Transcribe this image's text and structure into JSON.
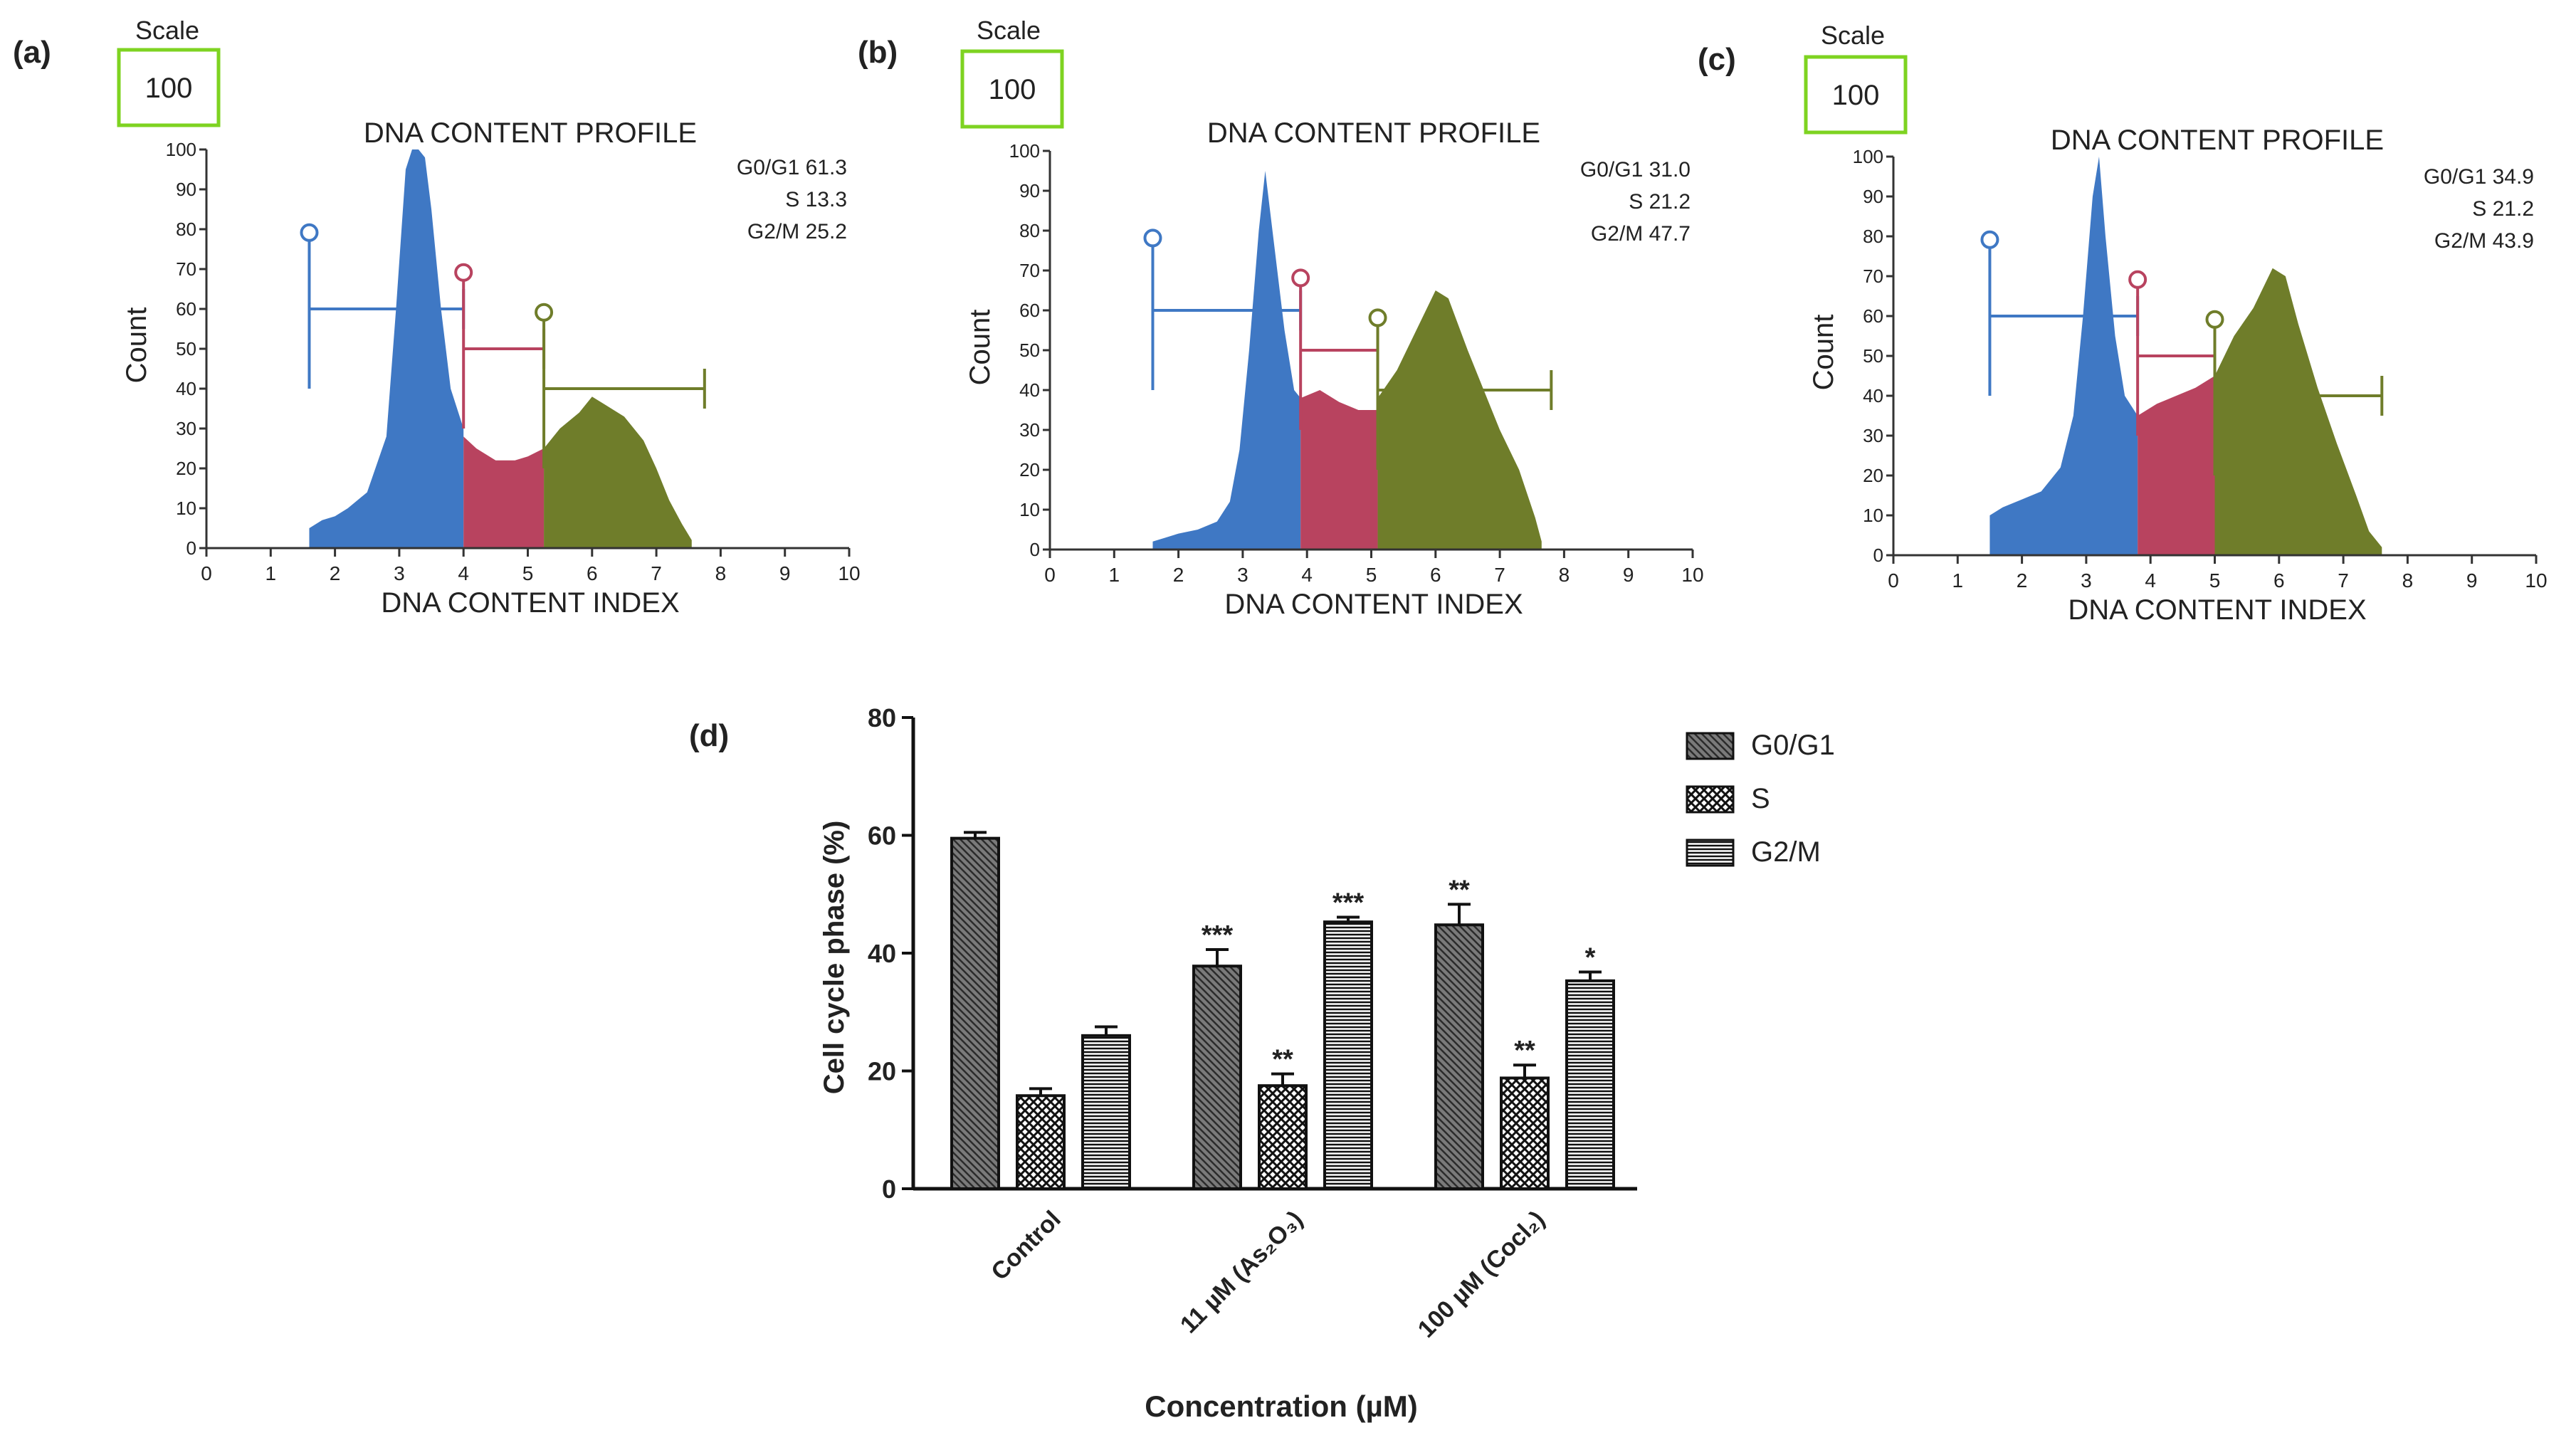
{
  "figure": {
    "panels": [
      {
        "id": "a",
        "label": "(a)",
        "scale_label": "Scale",
        "scale_value": "100",
        "title": "DNA CONTENT PROFILE",
        "xlabel": "DNA CONTENT INDEX",
        "ylabel": "Count",
        "stats": [
          "G0/G1 61.3",
          "S 13.3",
          "G2/M 25.2"
        ]
      },
      {
        "id": "b",
        "label": "(b)",
        "scale_label": "Scale",
        "scale_value": "100",
        "title": "DNA CONTENT PROFILE",
        "xlabel": "DNA CONTENT INDEX",
        "ylabel": "Count",
        "stats": [
          "G0/G1 31.0",
          "S 21.2",
          "G2/M 47.7"
        ]
      },
      {
        "id": "c",
        "label": "(c)",
        "scale_label": "Scale",
        "scale_value": "100",
        "title": "DNA CONTENT PROFILE",
        "xlabel": "DNA CONTENT INDEX",
        "ylabel": "Count",
        "stats": [
          "G0/G1 34.9",
          "S 21.2",
          "G2/M 43.9"
        ]
      }
    ],
    "bar_panel": {
      "label": "(d)"
    }
  },
  "colors": {
    "g1": "#3f78c4",
    "s": "#b8435f",
    "g2": "#6f7d2a",
    "axis": "#222222",
    "text": "#222222"
  },
  "chart_data": [
    {
      "type": "area",
      "panel": "a",
      "title": "DNA CONTENT PROFILE",
      "xlabel": "DNA CONTENT INDEX",
      "ylabel": "Count",
      "xlim": [
        0,
        10
      ],
      "ylim": [
        0,
        100
      ],
      "xticks": [
        0,
        1,
        2,
        3,
        4,
        5,
        6,
        7,
        8,
        9,
        10
      ],
      "yticks": [
        0,
        10,
        20,
        30,
        40,
        50,
        60,
        70,
        80,
        90,
        100
      ],
      "gates": [
        {
          "name": "G0/G1",
          "from": 1.6,
          "to": 4.0,
          "level": 60,
          "top": 77
        },
        {
          "name": "S",
          "from": 4.0,
          "to": 5.25,
          "level": 50,
          "top": 67
        },
        {
          "name": "G2/M",
          "from": 5.25,
          "to": 7.75,
          "level": 40,
          "top": 57
        }
      ],
      "series": [
        {
          "name": "G0/G1",
          "x": [
            1.6,
            1.8,
            2.0,
            2.2,
            2.5,
            2.8,
            2.95,
            3.1,
            3.2,
            3.3,
            3.4,
            3.5,
            3.65,
            3.8,
            4.0
          ],
          "y": [
            5,
            7,
            8,
            10,
            14,
            28,
            60,
            95,
            100,
            100,
            98,
            85,
            60,
            40,
            30
          ]
        },
        {
          "name": "S",
          "x": [
            4.0,
            4.2,
            4.5,
            4.8,
            5.0,
            5.25
          ],
          "y": [
            28,
            25,
            22,
            22,
            23,
            25
          ]
        },
        {
          "name": "G2/M",
          "x": [
            5.25,
            5.5,
            5.8,
            6.0,
            6.2,
            6.5,
            6.8,
            7.0,
            7.2,
            7.4,
            7.55
          ],
          "y": [
            25,
            30,
            34,
            38,
            36,
            33,
            27,
            20,
            12,
            6,
            2
          ]
        }
      ]
    },
    {
      "type": "area",
      "panel": "b",
      "title": "DNA CONTENT PROFILE",
      "xlabel": "DNA CONTENT INDEX",
      "ylabel": "Count",
      "xlim": [
        0,
        10
      ],
      "ylim": [
        0,
        100
      ],
      "xticks": [
        0,
        1,
        2,
        3,
        4,
        5,
        6,
        7,
        8,
        9,
        10
      ],
      "yticks": [
        0,
        10,
        20,
        30,
        40,
        50,
        60,
        70,
        80,
        90,
        100
      ],
      "gates": [
        {
          "name": "G0/G1",
          "from": 1.6,
          "to": 3.9,
          "level": 60,
          "top": 76
        },
        {
          "name": "S",
          "from": 3.9,
          "to": 5.1,
          "level": 50,
          "top": 66
        },
        {
          "name": "G2/M",
          "from": 5.1,
          "to": 7.8,
          "level": 40,
          "top": 56
        }
      ],
      "series": [
        {
          "name": "G0/G1",
          "x": [
            1.6,
            1.8,
            2.0,
            2.3,
            2.6,
            2.8,
            2.95,
            3.1,
            3.25,
            3.35,
            3.5,
            3.65,
            3.8,
            3.9
          ],
          "y": [
            2,
            3,
            4,
            5,
            7,
            12,
            25,
            50,
            80,
            95,
            75,
            55,
            40,
            38
          ]
        },
        {
          "name": "S",
          "x": [
            3.9,
            4.2,
            4.5,
            4.8,
            5.1
          ],
          "y": [
            38,
            40,
            37,
            35,
            35
          ]
        },
        {
          "name": "G2/M",
          "x": [
            5.1,
            5.4,
            5.7,
            6.0,
            6.2,
            6.5,
            6.8,
            7.0,
            7.3,
            7.55,
            7.65
          ],
          "y": [
            38,
            45,
            55,
            65,
            63,
            50,
            38,
            30,
            20,
            8,
            2
          ]
        }
      ]
    },
    {
      "type": "area",
      "panel": "c",
      "title": "DNA CONTENT PROFILE",
      "xlabel": "DNA CONTENT INDEX",
      "ylabel": "Count",
      "xlim": [
        0,
        10
      ],
      "ylim": [
        0,
        100
      ],
      "xticks": [
        0,
        1,
        2,
        3,
        4,
        5,
        6,
        7,
        8,
        9,
        10
      ],
      "yticks": [
        0,
        10,
        20,
        30,
        40,
        50,
        60,
        70,
        80,
        90,
        100
      ],
      "gates": [
        {
          "name": "G0/G1",
          "from": 1.5,
          "to": 3.8,
          "level": 60,
          "top": 77
        },
        {
          "name": "S",
          "from": 3.8,
          "to": 5.0,
          "level": 50,
          "top": 67
        },
        {
          "name": "G2/M",
          "from": 5.0,
          "to": 7.6,
          "level": 40,
          "top": 57
        }
      ],
      "series": [
        {
          "name": "G0/G1",
          "x": [
            1.5,
            1.7,
            2.0,
            2.3,
            2.6,
            2.8,
            2.95,
            3.1,
            3.2,
            3.3,
            3.45,
            3.6,
            3.8
          ],
          "y": [
            10,
            12,
            14,
            16,
            22,
            35,
            60,
            90,
            100,
            80,
            55,
            40,
            35
          ]
        },
        {
          "name": "S",
          "x": [
            3.8,
            4.1,
            4.4,
            4.7,
            5.0
          ],
          "y": [
            35,
            38,
            40,
            42,
            45
          ]
        },
        {
          "name": "G2/M",
          "x": [
            5.0,
            5.3,
            5.6,
            5.9,
            6.1,
            6.3,
            6.6,
            6.9,
            7.2,
            7.4,
            7.6
          ],
          "y": [
            45,
            55,
            62,
            72,
            70,
            58,
            42,
            28,
            15,
            6,
            2
          ]
        }
      ]
    },
    {
      "type": "bar",
      "panel": "d",
      "title": "",
      "xlabel": "Concentration (µM)",
      "ylabel": "Cell cycle phase (%)",
      "categories": [
        "Control",
        "11 µM (As₂O₃)",
        "100 µM (Cocl₂)"
      ],
      "ylim": [
        0,
        80
      ],
      "yticks": [
        0,
        20,
        40,
        60,
        80
      ],
      "series": [
        {
          "name": "G0/G1",
          "values": [
            59.5,
            37.8,
            44.8
          ],
          "errors": [
            1.0,
            2.8,
            3.5
          ],
          "significance": [
            "",
            "***",
            "**"
          ]
        },
        {
          "name": "S",
          "values": [
            15.8,
            17.5,
            18.8
          ],
          "errors": [
            1.2,
            2.0,
            2.2
          ],
          "significance": [
            "",
            "**",
            "**"
          ]
        },
        {
          "name": "G2/M",
          "values": [
            26.0,
            45.3,
            35.3
          ],
          "errors": [
            1.5,
            0.8,
            1.5
          ],
          "significance": [
            "",
            "***",
            "*"
          ]
        }
      ]
    }
  ]
}
